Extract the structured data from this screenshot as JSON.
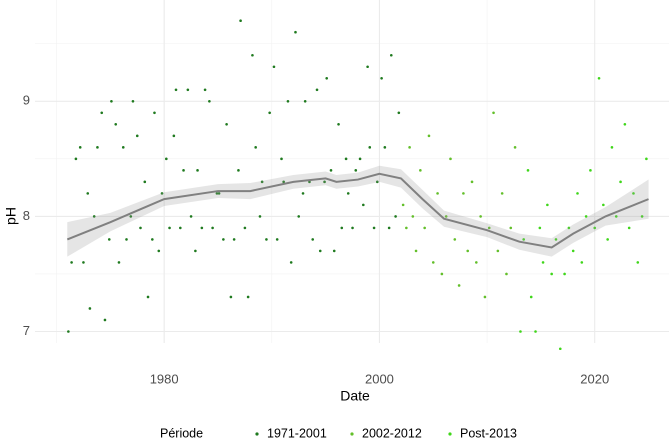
{
  "chart_data": {
    "type": "scatter",
    "x_label": "Date",
    "y_label": "pH",
    "legend_title": "Période",
    "legend_position": "bottom",
    "xlim": [
      1968,
      2026.9
    ],
    "ylim": [
      6.9,
      9.88
    ],
    "xticks": [
      1980,
      2000,
      2020
    ],
    "yticks": [
      7,
      8,
      9
    ],
    "x_minor_grid": [
      1970,
      1990,
      2010
    ],
    "y_minor_grid": [
      7.5,
      8.5,
      9.5
    ],
    "grid": true,
    "series": [
      {
        "name": "1971-2001",
        "color": "#1f7a1f",
        "x": [
          1971.1,
          1971.4,
          1971.8,
          1972.2,
          1972.5,
          1972.9,
          1973.1,
          1973.5,
          1973.8,
          1974.2,
          1974.5,
          1974.9,
          1975.1,
          1975.5,
          1975.8,
          1976.2,
          1976.5,
          1976.9,
          1977.1,
          1977.5,
          1977.8,
          1978.2,
          1978.5,
          1978.9,
          1979.1,
          1979.5,
          1979.8,
          1980.2,
          1980.5,
          1980.9,
          1981.1,
          1981.5,
          1981.8,
          1982.2,
          1982.5,
          1982.9,
          1983.1,
          1983.5,
          1983.8,
          1984.2,
          1984.5,
          1984.9,
          1985.1,
          1985.5,
          1985.8,
          1986.2,
          1986.5,
          1986.9,
          1987.1,
          1987.5,
          1987.8,
          1988.2,
          1988.5,
          1988.9,
          1989.1,
          1989.5,
          1989.8,
          1990.2,
          1990.5,
          1990.9,
          1991.1,
          1991.5,
          1991.8,
          1992.2,
          1992.5,
          1992.9,
          1993.1,
          1993.5,
          1993.8,
          1994.2,
          1994.5,
          1994.9,
          1995.1,
          1995.5,
          1995.8,
          1996.2,
          1996.5,
          1996.9,
          1997.1,
          1997.5,
          1997.8,
          1998.2,
          1998.5,
          1998.9,
          1999.1,
          1999.5,
          1999.8,
          2000.2,
          2000.5,
          2000.9,
          2001.1,
          2001.5,
          2001.8
        ],
        "values": [
          7.0,
          7.6,
          8.5,
          8.6,
          7.6,
          8.2,
          7.2,
          8.0,
          8.6,
          8.9,
          7.1,
          7.8,
          9.0,
          8.8,
          7.6,
          8.6,
          7.8,
          8.0,
          9.0,
          8.7,
          7.9,
          8.3,
          7.3,
          7.8,
          8.9,
          7.7,
          8.2,
          8.5,
          7.9,
          8.7,
          9.1,
          7.9,
          8.4,
          9.1,
          8.0,
          7.7,
          8.4,
          7.9,
          9.1,
          9.0,
          7.9,
          8.2,
          8.2,
          7.8,
          8.8,
          7.3,
          7.8,
          8.4,
          9.7,
          7.9,
          7.3,
          9.4,
          8.6,
          8.0,
          8.3,
          7.8,
          8.9,
          9.3,
          7.8,
          8.5,
          8.3,
          9.0,
          7.6,
          9.6,
          8.0,
          8.2,
          9.0,
          8.3,
          7.8,
          9.1,
          7.7,
          8.3,
          9.2,
          8.4,
          7.7,
          8.8,
          7.9,
          8.5,
          8.2,
          7.9,
          8.4,
          8.5,
          8.1,
          9.3,
          8.6,
          7.9,
          8.3,
          9.2,
          8.6,
          7.9,
          9.4,
          8.0,
          8.9
        ]
      },
      {
        "name": "2002-2012",
        "color": "#63bf2a",
        "x": [
          2002.2,
          2002.5,
          2002.8,
          2003.1,
          2003.4,
          2003.8,
          2004.2,
          2004.6,
          2005.0,
          2005.4,
          2005.8,
          2006.2,
          2006.6,
          2007.0,
          2007.4,
          2007.8,
          2008.2,
          2008.6,
          2009.0,
          2009.4,
          2009.8,
          2010.2,
          2010.6,
          2011.0,
          2011.4,
          2011.8,
          2012.2,
          2012.6
        ],
        "values": [
          8.1,
          7.9,
          8.6,
          8.0,
          7.7,
          8.4,
          7.9,
          8.7,
          7.6,
          8.2,
          7.5,
          8.0,
          8.5,
          7.8,
          7.4,
          8.2,
          7.7,
          8.3,
          7.6,
          8.0,
          7.3,
          7.9,
          8.9,
          7.7,
          8.2,
          7.5,
          7.9,
          8.6
        ]
      },
      {
        "name": "Post-2013",
        "color": "#3fd61a",
        "x": [
          2013.1,
          2013.4,
          2013.8,
          2014.1,
          2014.5,
          2014.9,
          2015.2,
          2015.6,
          2016.0,
          2016.4,
          2016.8,
          2017.2,
          2017.6,
          2018.0,
          2018.4,
          2018.8,
          2019.2,
          2019.6,
          2020.0,
          2020.4,
          2020.8,
          2021.2,
          2021.6,
          2022.0,
          2022.4,
          2022.8,
          2023.2,
          2023.6,
          2024.0,
          2024.4,
          2024.8
        ],
        "values": [
          7.0,
          7.8,
          8.4,
          7.3,
          7.0,
          7.9,
          7.6,
          8.1,
          7.5,
          7.8,
          6.85,
          7.5,
          7.9,
          7.7,
          8.2,
          7.6,
          8.0,
          8.4,
          7.9,
          9.2,
          8.1,
          7.8,
          8.6,
          8.0,
          8.3,
          8.8,
          7.9,
          8.2,
          7.6,
          8.0,
          8.5
        ]
      }
    ],
    "smooth": {
      "color": "#808080",
      "x": [
        1971,
        1975,
        1980,
        1985,
        1988,
        1992,
        1995,
        1996,
        1998,
        2000,
        2002,
        2004,
        2006,
        2010,
        2013,
        2016,
        2018,
        2021,
        2025
      ],
      "values": [
        7.8,
        7.95,
        8.15,
        8.22,
        8.22,
        8.3,
        8.33,
        8.3,
        8.32,
        8.37,
        8.33,
        8.15,
        7.98,
        7.88,
        7.78,
        7.73,
        7.85,
        8.0,
        8.15
      ],
      "lower": [
        7.65,
        7.87,
        8.09,
        8.16,
        8.15,
        8.24,
        8.27,
        8.24,
        8.26,
        8.3,
        8.25,
        8.07,
        7.91,
        7.82,
        7.71,
        7.65,
        7.77,
        7.92,
        7.98
      ],
      "upper": [
        7.95,
        8.03,
        8.21,
        8.28,
        8.29,
        8.36,
        8.39,
        8.36,
        8.38,
        8.44,
        8.41,
        8.23,
        8.05,
        7.94,
        7.85,
        7.81,
        7.93,
        8.08,
        8.32
      ]
    }
  }
}
